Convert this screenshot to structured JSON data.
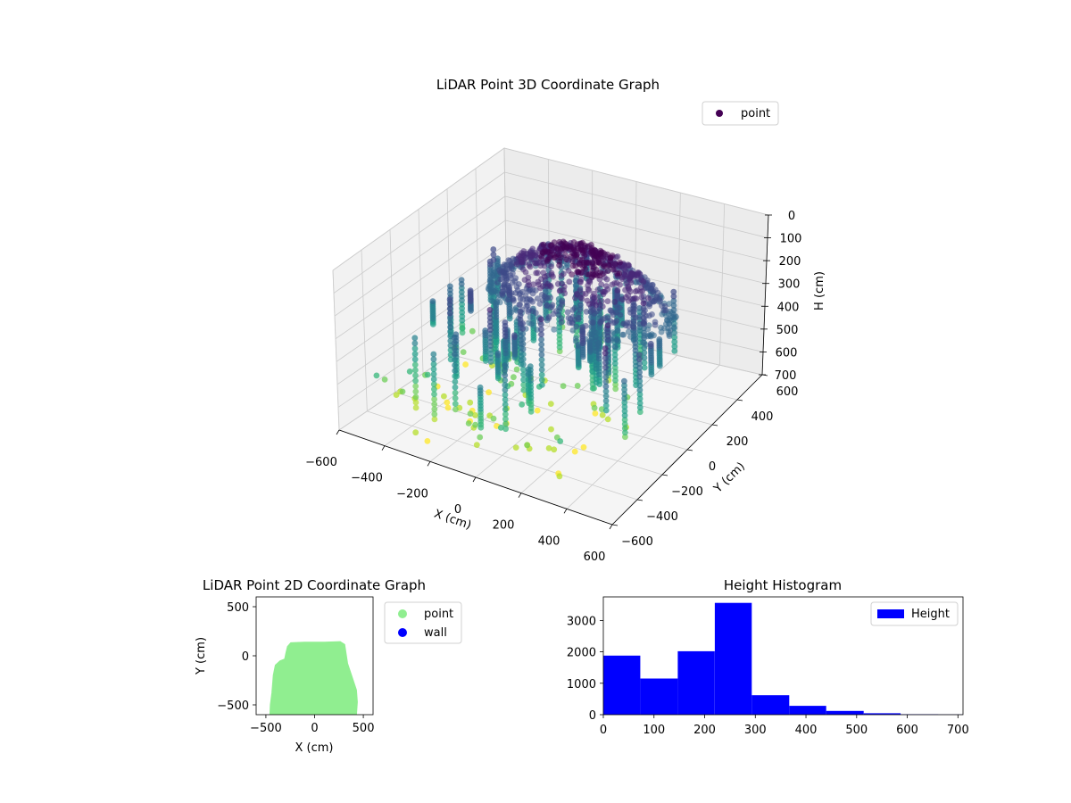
{
  "chart_data": [
    {
      "type": "scatter3d",
      "title": "LiDAR Point 3D Coordinate Graph",
      "xlabel": "X (cm)",
      "ylabel": "Y (cm)",
      "zlabel": "H (cm)",
      "xlim": [
        -600,
        600
      ],
      "ylim": [
        -600,
        600
      ],
      "zlim": [
        0,
        700
      ],
      "z_inverted": true,
      "x_ticks": [
        "−600",
        "−400",
        "−200",
        "0",
        "200",
        "400",
        "600"
      ],
      "y_ticks": [
        "−600",
        "−400",
        "−200",
        "0",
        "200",
        "400",
        "600"
      ],
      "z_ticks": [
        "0",
        "100",
        "200",
        "300",
        "400",
        "500",
        "600",
        "700"
      ],
      "legend": [
        {
          "label": "point",
          "color": "#440154"
        }
      ],
      "legend_position": "top-right",
      "colormap": "viridis",
      "grid": true
    },
    {
      "type": "scatter",
      "title": "LiDAR Point 2D Coordinate Graph",
      "xlabel": "X (cm)",
      "ylabel": "Y (cm)",
      "xlim": [
        -600,
        600
      ],
      "ylim": [
        -600,
        600
      ],
      "x_ticks": [
        "−500",
        "0",
        "500"
      ],
      "y_ticks": [
        "−500",
        "0",
        "500"
      ],
      "footprint_outline": [
        [
          -450,
          -600
        ],
        [
          -445,
          -500
        ],
        [
          -430,
          -380
        ],
        [
          -415,
          -200
        ],
        [
          -395,
          -100
        ],
        [
          -350,
          -60
        ],
        [
          -300,
          -40
        ],
        [
          -285,
          30
        ],
        [
          -270,
          90
        ],
        [
          -240,
          125
        ],
        [
          -100,
          130
        ],
        [
          100,
          130
        ],
        [
          260,
          135
        ],
        [
          300,
          110
        ],
        [
          330,
          -80
        ],
        [
          370,
          -200
        ],
        [
          420,
          -350
        ],
        [
          430,
          -470
        ],
        [
          420,
          -600
        ]
      ],
      "legend": [
        {
          "label": "point",
          "color": "#90ee90"
        },
        {
          "label": "wall",
          "color": "#0000ff"
        }
      ],
      "legend_position": "outside-right",
      "grid": false
    },
    {
      "type": "bar",
      "title": "Height Histogram",
      "xlabel": "",
      "ylabel": "",
      "bin_edges": [
        0,
        73,
        147,
        220,
        293,
        367,
        440,
        514,
        587,
        661,
        734
      ],
      "values": [
        1880,
        1150,
        2020,
        3560,
        620,
        280,
        120,
        45,
        15,
        5
      ],
      "xlim": [
        0,
        710
      ],
      "ylim": [
        0,
        3750
      ],
      "x_ticks": [
        0,
        100,
        200,
        300,
        400,
        500,
        600,
        700
      ],
      "y_ticks": [
        0,
        1000,
        2000,
        3000
      ],
      "series": [
        {
          "name": "Height",
          "color": "#0000ff"
        }
      ],
      "legend_position": "top-right",
      "grid": false
    }
  ]
}
